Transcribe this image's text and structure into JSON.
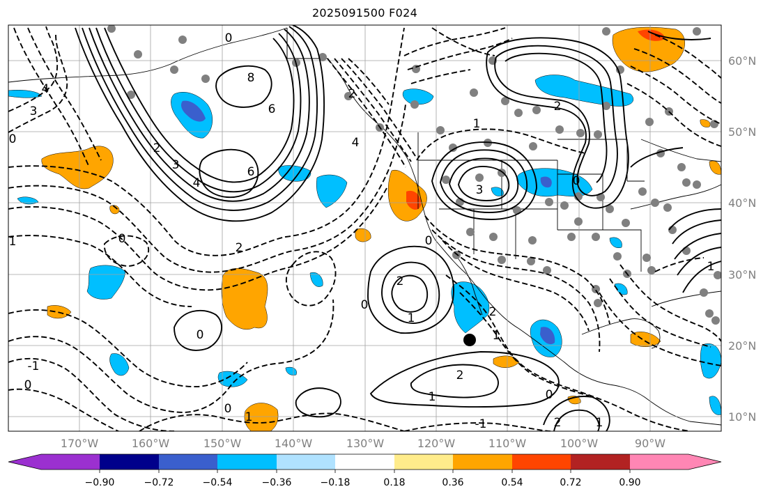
{
  "title": "2025091500 F024",
  "map": {
    "lat_labels": [
      "60°N",
      "50°N",
      "40°N",
      "30°N",
      "20°N",
      "10°N"
    ],
    "lon_labels": [
      "170°W",
      "160°W",
      "150°W",
      "140°W",
      "130°W",
      "120°W",
      "110°W",
      "100°W",
      "90°W"
    ],
    "contour_labels": [
      "0",
      "8",
      "6",
      "6",
      "3",
      "4",
      "2",
      "2",
      "0",
      "2",
      "1",
      "0",
      "2",
      "1",
      "0",
      "1",
      "4",
      "2",
      "3",
      "0",
      "1",
      "2",
      "3",
      "4",
      "0",
      "-1",
      "0",
      "1",
      "0",
      "2",
      "0",
      "1",
      "0",
      "1",
      "2",
      "1",
      "-1"
    ],
    "land_color": "#ffffff",
    "grid_color": "#a0a0a0"
  },
  "colorbar": {
    "ticks": [
      "−0.90",
      "−0.72",
      "−0.54",
      "−0.36",
      "−0.18",
      "0.18",
      "0.36",
      "0.54",
      "0.72",
      "0.90"
    ],
    "colors": [
      "#9b30d0",
      "#00008b",
      "#3a5fcd",
      "#00bfff",
      "#b0e2ff",
      "#ffffff",
      "#ffec8b",
      "#ffa500",
      "#ff4500",
      "#b22222",
      "#ff86b4"
    ]
  },
  "legend_colors": {
    "neg_strong": "#3a5fcd",
    "neg_mid": "#00bfff",
    "pos_mid": "#ffa500",
    "pos_strong": "#ff4500"
  }
}
